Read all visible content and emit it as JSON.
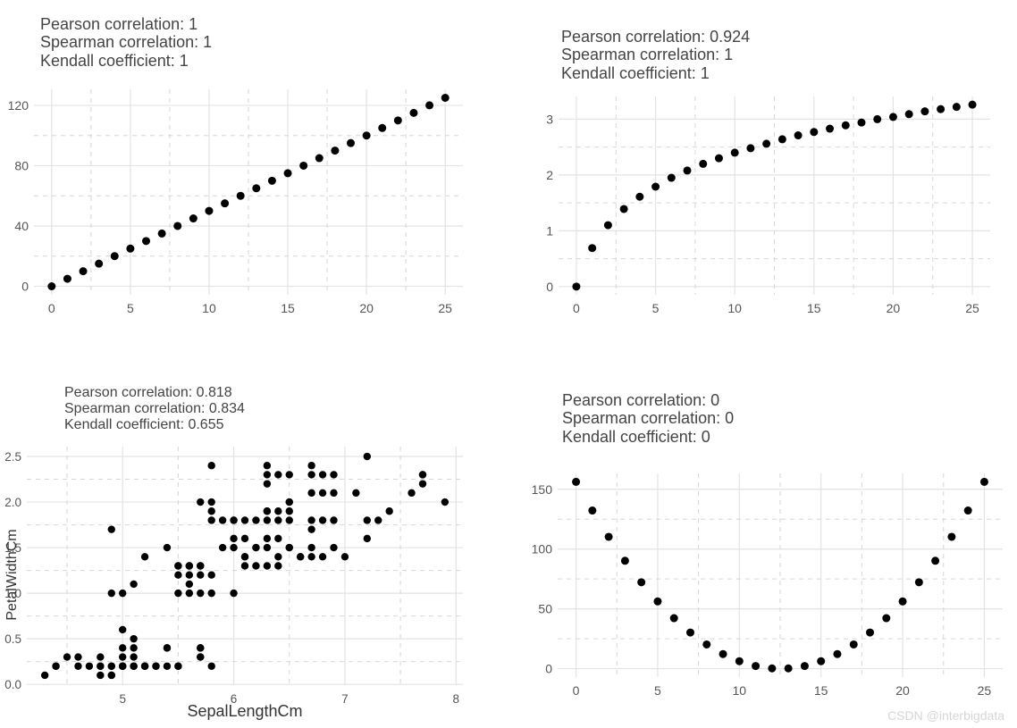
{
  "watermark": "CSDN @interbigdata",
  "chart_data": [
    {
      "type": "scatter",
      "annotations": [
        "Pearson correlation: 1",
        "Spearman correlation: 1",
        "Kendall coefficient: 1"
      ],
      "xlabel": "",
      "ylabel": "",
      "xlim": [
        0,
        25
      ],
      "ylim": [
        0,
        125
      ],
      "x_ticks": [
        0,
        5,
        10,
        15,
        20,
        25
      ],
      "y_ticks": [
        0,
        40,
        80,
        120
      ],
      "grid": true,
      "series": [
        {
          "x": [
            0,
            1,
            2,
            3,
            4,
            5,
            6,
            7,
            8,
            9,
            10,
            11,
            12,
            13,
            14,
            15,
            16,
            17,
            18,
            19,
            20,
            21,
            22,
            23,
            24,
            25
          ],
          "y": [
            0,
            5,
            10,
            15,
            20,
            25,
            30,
            35,
            40,
            45,
            50,
            55,
            60,
            65,
            70,
            75,
            80,
            85,
            90,
            95,
            100,
            105,
            110,
            115,
            120,
            125
          ]
        }
      ]
    },
    {
      "type": "scatter",
      "annotations": [
        "Pearson correlation: 0.924",
        "Spearman correlation: 1",
        "Kendall coefficient: 1"
      ],
      "xlabel": "",
      "ylabel": "",
      "xlim": [
        0,
        25
      ],
      "ylim": [
        0,
        3.26
      ],
      "x_ticks": [
        0,
        5,
        10,
        15,
        20,
        25
      ],
      "y_ticks": [
        0,
        1,
        2,
        3
      ],
      "grid": true,
      "series": [
        {
          "x": [
            0,
            1,
            2,
            3,
            4,
            5,
            6,
            7,
            8,
            9,
            10,
            11,
            12,
            13,
            14,
            15,
            16,
            17,
            18,
            19,
            20,
            21,
            22,
            23,
            24,
            25
          ],
          "y": [
            0,
            0.69,
            1.1,
            1.39,
            1.61,
            1.79,
            1.95,
            2.08,
            2.2,
            2.3,
            2.4,
            2.48,
            2.56,
            2.64,
            2.71,
            2.77,
            2.83,
            2.89,
            2.94,
            3.0,
            3.04,
            3.09,
            3.14,
            3.18,
            3.22,
            3.26
          ]
        }
      ]
    },
    {
      "type": "scatter",
      "annotations": [
        "Pearson correlation: 0.818",
        "Spearman correlation: 0.834",
        "Kendall coefficient: 0.655"
      ],
      "xlabel": "SepalLengthCm",
      "ylabel": "PetalWidthCm",
      "xlim": [
        4.3,
        7.9
      ],
      "ylim": [
        0.1,
        2.5
      ],
      "x_ticks": [
        5,
        6,
        7,
        8
      ],
      "y_ticks": [
        0.0,
        0.5,
        1.0,
        1.5,
        2.0,
        2.5
      ],
      "grid": true,
      "series": [
        {
          "x": [
            4.3,
            4.4,
            4.4,
            4.5,
            4.6,
            4.6,
            4.7,
            4.8,
            4.8,
            4.8,
            4.9,
            4.9,
            4.9,
            4.9,
            5.0,
            5.0,
            5.0,
            5.0,
            5.0,
            5.1,
            5.1,
            5.1,
            5.1,
            5.1,
            5.2,
            5.2,
            5.3,
            5.4,
            5.4,
            5.5,
            5.5,
            5.7,
            5.7,
            4.9,
            5.0,
            5.1,
            5.2,
            5.4,
            5.5,
            5.5,
            5.6,
            5.6,
            5.6,
            5.7,
            5.7,
            5.8,
            5.8,
            6.0,
            5.5,
            5.5,
            5.6,
            5.7,
            5.9,
            6.0,
            6.0,
            6.1,
            6.1,
            6.2,
            6.2,
            6.3,
            6.3,
            6.4,
            6.4,
            6.5,
            6.5,
            6.6,
            6.7,
            6.7,
            6.8,
            6.9,
            7.0,
            5.6,
            5.7,
            5.8,
            5.9,
            6.0,
            6.0,
            6.1,
            6.2,
            6.3,
            6.3,
            6.3,
            6.4,
            6.4,
            6.5,
            6.5,
            6.7,
            6.7,
            6.8,
            6.9,
            7.1,
            7.2,
            7.3,
            5.7,
            5.8,
            5.8,
            6.1,
            6.3,
            6.4,
            6.5,
            6.5,
            6.7,
            6.8,
            6.9,
            7.2,
            7.4,
            7.6,
            7.7,
            7.7,
            7.9,
            6.3,
            6.4,
            6.5,
            6.7,
            6.8,
            6.9,
            7.7,
            5.8,
            6.3,
            6.7,
            7.2,
            4.9,
            5.0,
            5.1,
            5.2,
            5.3,
            6.1,
            6.2,
            4.8,
            5.0,
            5.4,
            5.7,
            5.7,
            5.8,
            6.3,
            6.6
          ],
          "y": [
            0.1,
            0.2,
            0.2,
            0.3,
            0.2,
            0.3,
            0.2,
            0.1,
            0.2,
            0.3,
            0.1,
            0.1,
            0.2,
            0.2,
            0.2,
            0.3,
            0.4,
            0.6,
            0.2,
            0.2,
            0.3,
            0.4,
            0.5,
            0.2,
            0.2,
            0.2,
            0.2,
            0.2,
            0.4,
            0.2,
            0.2,
            0.3,
            0.4,
            1.0,
            1.0,
            1.1,
            1.4,
            1.5,
            1.3,
            1.2,
            1.1,
            1.2,
            1.0,
            1.2,
            1.0,
            1.0,
            1.2,
            1.0,
            1.0,
            1.3,
            1.3,
            1.3,
            1.5,
            1.5,
            1.6,
            1.4,
            1.3,
            1.3,
            1.5,
            1.3,
            1.5,
            1.3,
            1.4,
            1.5,
            1.5,
            1.4,
            1.4,
            1.5,
            1.4,
            1.5,
            1.4,
            1.3,
            1.3,
            1.8,
            1.8,
            1.8,
            1.8,
            1.8,
            1.8,
            1.8,
            1.9,
            1.9,
            1.8,
            1.9,
            1.8,
            1.9,
            1.8,
            1.7,
            1.8,
            1.8,
            2.1,
            1.8,
            1.8,
            2.0,
            2.0,
            1.9,
            1.6,
            1.6,
            1.6,
            2.0,
            2.0,
            2.1,
            2.1,
            2.1,
            1.6,
            1.9,
            2.1,
            2.3,
            2.2,
            2.0,
            2.3,
            2.3,
            2.3,
            2.3,
            2.3,
            2.3,
            2.3,
            2.4,
            2.4,
            2.4,
            2.5,
            1.7,
            0.2,
            0.2,
            0.2,
            0.2,
            1.4,
            1.5,
            0.2,
            0.2,
            0.4,
            0.4,
            0.3,
            0.2,
            2.2,
            1.4
          ]
        }
      ]
    },
    {
      "type": "scatter",
      "annotations": [
        "Pearson correlation: 0",
        "Spearman correlation: 0",
        "Kendall coefficient: 0"
      ],
      "xlabel": "",
      "ylabel": "",
      "xlim": [
        0,
        25
      ],
      "ylim": [
        0,
        156.25
      ],
      "x_ticks": [
        0,
        5,
        10,
        15,
        20,
        25
      ],
      "y_ticks": [
        0,
        50,
        100,
        150
      ],
      "grid": true,
      "series": [
        {
          "x": [
            0,
            1,
            2,
            3,
            4,
            5,
            6,
            7,
            8,
            9,
            10,
            11,
            12,
            13,
            14,
            15,
            16,
            17,
            18,
            19,
            20,
            21,
            22,
            23,
            24,
            25
          ],
          "y": [
            156.25,
            132.25,
            110.25,
            90.25,
            72.25,
            56.25,
            42.25,
            30.25,
            20.25,
            12.25,
            6.25,
            2.25,
            0.25,
            0.25,
            2.25,
            6.25,
            12.25,
            20.25,
            30.25,
            42.25,
            56.25,
            72.25,
            90.25,
            110.25,
            132.25,
            156.25
          ]
        }
      ]
    }
  ]
}
